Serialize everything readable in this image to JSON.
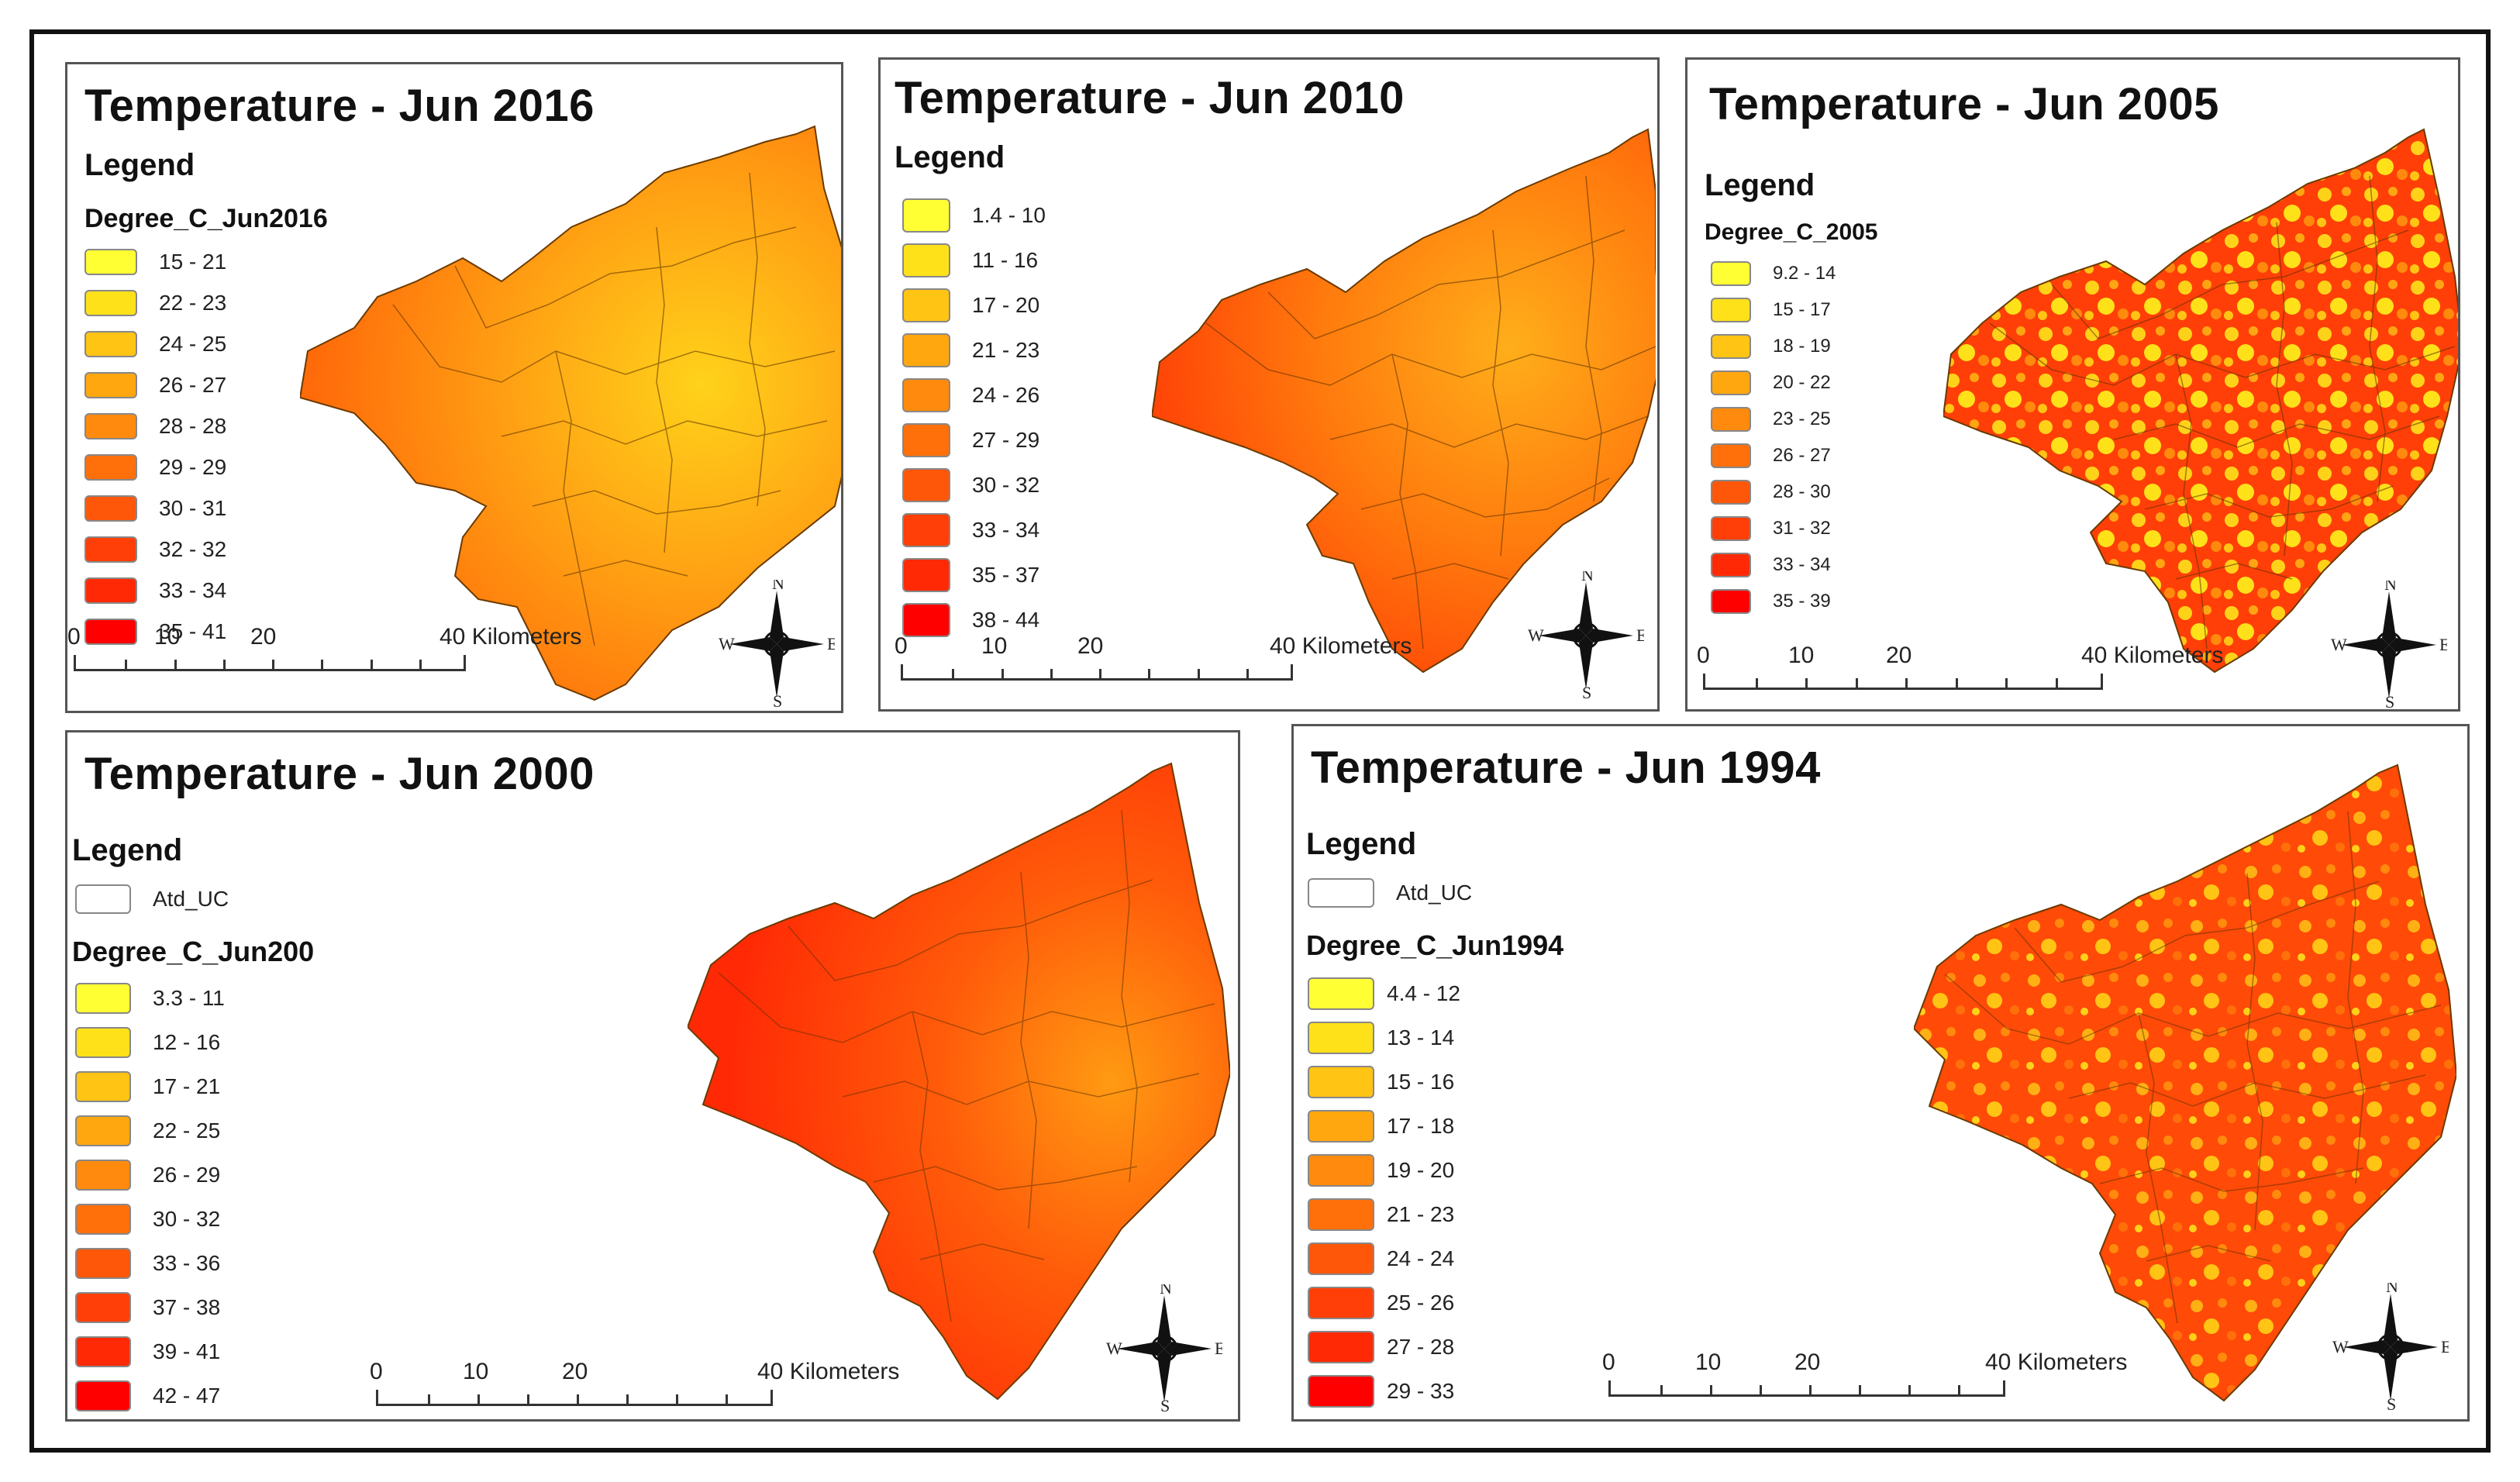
{
  "colors": {
    "class_ramp": [
      "#ffff33",
      "#ffe11a",
      "#ffc414",
      "#ffa70f",
      "#ff8a0d",
      "#ff700b",
      "#ff5709",
      "#ff3f07",
      "#ff2a05",
      "#ff0000"
    ]
  },
  "panels": [
    {
      "title": "Temperature - Jun 2016",
      "legend_heading": "Legend",
      "field_name": "Degree_C_Jun2016",
      "classes": [
        "15 - 21",
        "22 - 23",
        "24 - 25",
        "26 - 27",
        "28 - 28",
        "29 - 29",
        "30 - 31",
        "32 - 32",
        "33 - 34",
        "35 - 41"
      ],
      "scale_labels": [
        "0",
        "10",
        "20",
        "40 Kilometers"
      ],
      "compass": {
        "n": "N",
        "s": "S",
        "e": "E",
        "w": "W"
      }
    },
    {
      "title": "Temperature - Jun 2010",
      "legend_heading": "Legend",
      "classes": [
        "1.4 - 10",
        "11 - 16",
        "17 - 20",
        "21 - 23",
        "24 - 26",
        "27 - 29",
        "30 - 32",
        "33 - 34",
        "35 - 37",
        "38 - 44"
      ],
      "scale_labels": [
        "0",
        "10",
        "20",
        "40 Kilometers"
      ],
      "compass": {
        "n": "N",
        "s": "S",
        "e": "E",
        "w": "W"
      }
    },
    {
      "title": "Temperature - Jun 2005",
      "legend_heading": "Legend",
      "field_name": "Degree_C_2005",
      "classes": [
        "9.2 - 14",
        "15 - 17",
        "18 - 19",
        "20 - 22",
        "23 - 25",
        "26 - 27",
        "28 - 30",
        "31 - 32",
        "33 - 34",
        "35 - 39"
      ],
      "scale_labels": [
        "0",
        "10",
        "20",
        "40 Kilometers"
      ],
      "compass": {
        "n": "N",
        "s": "S",
        "e": "E",
        "w": "W"
      }
    },
    {
      "title": "Temperature - Jun 2000",
      "legend_heading": "Legend",
      "boundary_layer": "Atd_UC",
      "field_name": "Degree_C_Jun200",
      "classes": [
        "3.3 - 11",
        "12 - 16",
        "17 - 21",
        "22 - 25",
        "26 - 29",
        "30 - 32",
        "33 - 36",
        "37 - 38",
        "39 - 41",
        "42 - 47"
      ],
      "scale_labels": [
        "0",
        "10",
        "20",
        "40 Kilometers"
      ],
      "compass": {
        "n": "N",
        "s": "S",
        "e": "E",
        "w": "W"
      }
    },
    {
      "title": "Temperature - Jun 1994",
      "legend_heading": "Legend",
      "boundary_layer": "Atd_UC",
      "field_name": "Degree_C_Jun1994",
      "classes": [
        "4.4 - 12",
        "13 - 14",
        "15 - 16",
        "17 - 18",
        "19 - 20",
        "21 - 23",
        "24 - 24",
        "25 - 26",
        "27 - 28",
        "29 - 33"
      ],
      "scale_labels": [
        "0",
        "10",
        "20",
        "40 Kilometers"
      ],
      "compass": {
        "n": "N",
        "s": "S",
        "e": "E",
        "w": "W"
      }
    }
  ]
}
